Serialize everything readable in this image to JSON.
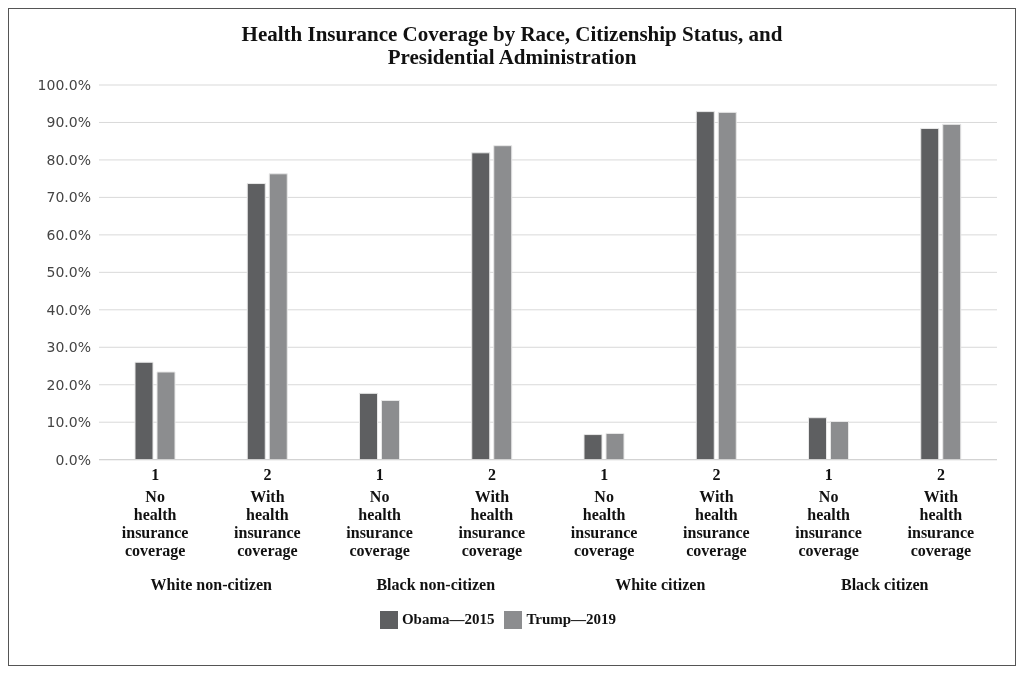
{
  "chart_data": {
    "type": "bar",
    "title": "Health Insurance Coverage by Race, Citizenship Status, and Presidential Administration",
    "categories": [
      "1 No health insurance coverage",
      "2 With health insurance coverage",
      "1 No health insurance coverage",
      "2 With health insurance coverage",
      "1 No health insurance coverage",
      "2 With health insurance coverage",
      "1 No health insurance coverage",
      "2 With health insurance coverage"
    ],
    "series": [
      {
        "name": "Obama—2015",
        "color": "#5e5f61",
        "values": [
          26.0,
          73.7,
          17.7,
          81.9,
          6.7,
          92.9,
          11.2,
          88.4
        ]
      },
      {
        "name": "Trump—2019",
        "color": "#8c8d8f",
        "values": [
          23.4,
          76.3,
          15.8,
          83.8,
          7.0,
          92.7,
          10.2,
          89.5
        ]
      }
    ],
    "annotations": [
      "White non-citizen",
      "Black non-citizen",
      "White citizen",
      "Black citizen"
    ],
    "ylim": [
      0,
      100
    ],
    "yticks": [
      {
        "value": 0,
        "label": "0.0%"
      },
      {
        "value": 10,
        "label": "10.0%"
      },
      {
        "value": 20,
        "label": "20.0%"
      },
      {
        "value": 30,
        "label": "30.0%"
      },
      {
        "value": 40,
        "label": "40.0%"
      },
      {
        "value": 50,
        "label": "50.0%"
      },
      {
        "value": 60,
        "label": "60.0%"
      },
      {
        "value": 70,
        "label": "70.0%"
      },
      {
        "value": 80,
        "label": "80.0%"
      },
      {
        "value": 90,
        "label": "90.0%"
      },
      {
        "value": 100,
        "label": "100.0%"
      }
    ],
    "grid": "y",
    "legend": "bottom"
  }
}
